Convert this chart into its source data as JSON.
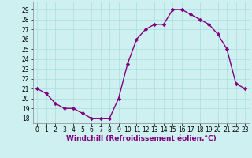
{
  "x": [
    0,
    1,
    2,
    3,
    4,
    5,
    6,
    7,
    8,
    9,
    10,
    11,
    12,
    13,
    14,
    15,
    16,
    17,
    18,
    19,
    20,
    21,
    22,
    23
  ],
  "y": [
    21,
    20.5,
    19.5,
    19,
    19,
    18.5,
    18,
    18,
    18,
    20,
    23.5,
    26,
    27,
    27.5,
    27.5,
    29,
    29,
    28.5,
    28,
    27.5,
    26.5,
    25,
    21.5,
    21
  ],
  "line_color": "#800080",
  "marker": "D",
  "marker_size": 2.2,
  "linewidth": 1.0,
  "xlabel": "Windchill (Refroidissement éolien,°C)",
  "xlabel_fontsize": 6.5,
  "tick_fontsize": 5.5,
  "ylim": [
    17.5,
    29.8
  ],
  "xlim": [
    -0.5,
    23.5
  ],
  "yticks": [
    18,
    19,
    20,
    21,
    22,
    23,
    24,
    25,
    26,
    27,
    28,
    29
  ],
  "xticks": [
    0,
    1,
    2,
    3,
    4,
    5,
    6,
    7,
    8,
    9,
    10,
    11,
    12,
    13,
    14,
    15,
    16,
    17,
    18,
    19,
    20,
    21,
    22,
    23
  ],
  "grid_color": "#a8dede",
  "bg_color": "#cff0f0",
  "spine_color": "#888888"
}
